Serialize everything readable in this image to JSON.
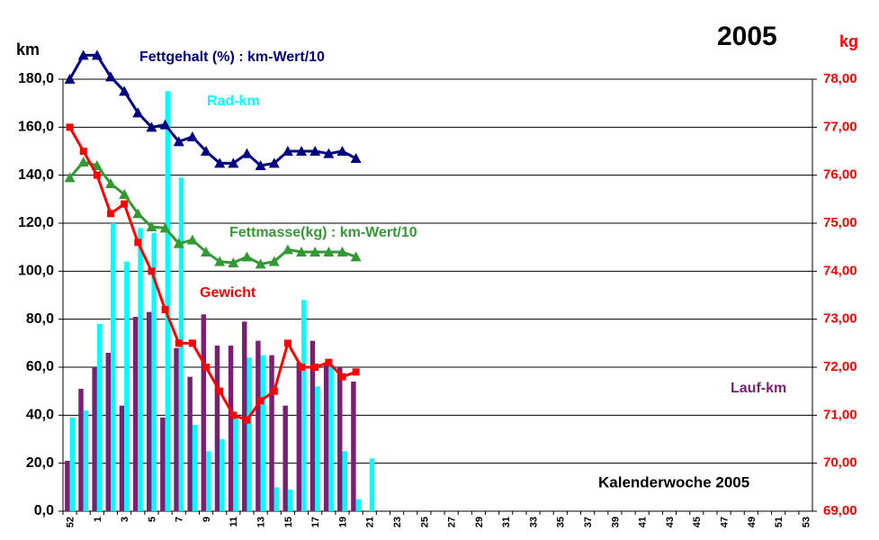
{
  "chart_data": {
    "type": "bar",
    "title": "2005",
    "y_label": "km",
    "y2_label": "kg",
    "x_label": "Kalenderwoche  2005",
    "categories": [
      "52",
      null,
      "1",
      null,
      "3",
      null,
      "5",
      null,
      "7",
      null,
      "9",
      null,
      "11",
      null,
      "13",
      null,
      "15",
      null,
      "17",
      null,
      "19",
      null,
      "21",
      null,
      "23",
      null,
      "25",
      null,
      "27",
      null,
      "29",
      null,
      "31",
      null,
      "33",
      null,
      "35",
      null,
      "37",
      null,
      "39",
      null,
      "41",
      null,
      "43",
      null,
      "45",
      null,
      "47",
      null,
      "49",
      null,
      "51",
      null,
      "53"
    ],
    "ylim": [
      0,
      180
    ],
    "yticks": [
      {
        "value": 0,
        "label": "0,0"
      },
      {
        "value": 20,
        "label": "20,0"
      },
      {
        "value": 40,
        "label": "40,0"
      },
      {
        "value": 60,
        "label": "60,0"
      },
      {
        "value": 80,
        "label": "80,0"
      },
      {
        "value": 100,
        "label": "100,0"
      },
      {
        "value": 120,
        "label": "120,0"
      },
      {
        "value": 140,
        "label": "140,0"
      },
      {
        "value": 160,
        "label": "160,0"
      },
      {
        "value": 180,
        "label": "180,0"
      }
    ],
    "y2lim": [
      69,
      78
    ],
    "y2ticks": [
      {
        "value": 69,
        "label": "69,00"
      },
      {
        "value": 70,
        "label": "70,00"
      },
      {
        "value": 71,
        "label": "71,00"
      },
      {
        "value": 72,
        "label": "72,00"
      },
      {
        "value": 73,
        "label": "73,00"
      },
      {
        "value": 74,
        "label": "74,00"
      },
      {
        "value": 75,
        "label": "75,00"
      },
      {
        "value": 76,
        "label": "76,00"
      },
      {
        "value": 77,
        "label": "77,00"
      },
      {
        "value": 78,
        "label": "78,00"
      }
    ],
    "grid": true,
    "series": [
      {
        "name": "Lauf-km",
        "type": "bar",
        "color": "#7b1f72",
        "values": [
          21,
          51,
          60,
          66,
          44,
          81,
          83,
          39,
          68,
          56,
          82,
          69,
          69,
          79,
          71,
          65,
          44,
          62,
          71,
          61,
          60,
          54,
          null,
          null,
          null,
          null,
          null,
          null,
          null,
          null,
          null,
          null,
          null,
          null,
          null,
          null,
          null,
          null,
          null,
          null,
          null,
          null,
          null,
          null,
          null,
          null,
          null,
          null,
          null,
          null,
          null,
          null,
          null,
          null,
          null
        ]
      },
      {
        "name": "Rad-km",
        "type": "bar",
        "color": "#00ffff",
        "values": [
          39,
          42,
          78,
          120,
          104,
          118,
          116,
          175,
          139,
          36,
          25,
          30,
          40,
          64,
          65,
          10,
          9,
          88,
          52,
          60,
          25,
          5,
          22,
          null,
          null,
          null,
          null,
          null,
          null,
          null,
          null,
          null,
          null,
          null,
          null,
          null,
          null,
          null,
          null,
          null,
          null,
          null,
          null,
          null,
          null,
          null,
          null,
          null,
          null,
          null,
          null,
          null,
          null,
          null,
          null
        ]
      },
      {
        "name": "Fettgehalt (%) : km-Wert/10",
        "type": "line",
        "marker": "triangle",
        "color": "#000080",
        "values": [
          180,
          190,
          190,
          181,
          175,
          166,
          160,
          161,
          154,
          156,
          150,
          145,
          145,
          149,
          144,
          145,
          150,
          150,
          150,
          149,
          150,
          147,
          null,
          null,
          null,
          null,
          null,
          null,
          null,
          null,
          null,
          null,
          null,
          null,
          null,
          null,
          null,
          null,
          null,
          null,
          null,
          null,
          null,
          null,
          null,
          null,
          null,
          null,
          null,
          null,
          null,
          null,
          null,
          null,
          null
        ]
      },
      {
        "name": "Fettmasse(kg) : km-Wert/10",
        "type": "line",
        "marker": "triangle",
        "color": "#339933",
        "values": [
          139,
          145.5,
          144,
          136.5,
          132,
          124,
          118.5,
          118,
          111.5,
          113,
          108,
          104,
          103.5,
          106,
          103,
          104,
          109,
          108,
          108,
          108,
          108,
          106,
          null,
          null,
          null,
          null,
          null,
          null,
          null,
          null,
          null,
          null,
          null,
          null,
          null,
          null,
          null,
          null,
          null,
          null,
          null,
          null,
          null,
          null,
          null,
          null,
          null,
          null,
          null,
          null,
          null,
          null,
          null,
          null,
          null
        ]
      },
      {
        "name": "Gewicht",
        "type": "line",
        "marker": "square",
        "color": "#ff0000",
        "axis": "y2",
        "values": [
          77.0,
          76.5,
          76.0,
          75.2,
          75.4,
          74.6,
          74.0,
          73.2,
          72.5,
          72.5,
          72.0,
          71.5,
          71.0,
          70.9,
          71.3,
          71.5,
          72.5,
          72.0,
          72.0,
          72.1,
          71.8,
          71.9,
          null,
          null,
          null,
          null,
          null,
          null,
          null,
          null,
          null,
          null,
          null,
          null,
          null,
          null,
          null,
          null,
          null,
          null,
          null,
          null,
          null,
          null,
          null,
          null,
          null,
          null,
          null,
          null,
          null,
          null,
          null,
          null,
          null
        ]
      }
    ]
  }
}
